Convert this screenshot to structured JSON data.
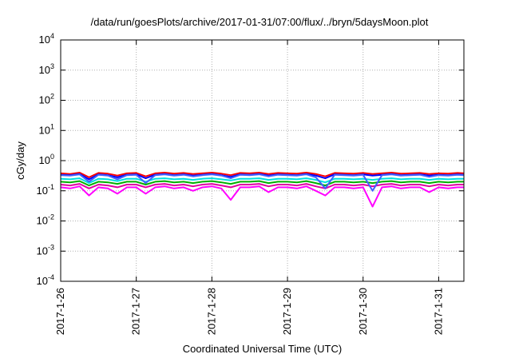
{
  "chart_data": {
    "type": "line",
    "title": "/data/run/goesPlots/archive/2017-01-31/07:00/flux/../bryn/5daysMoon.plot",
    "xlabel": "Coordinated Universal Time (UTC)",
    "ylabel": "cGy/day",
    "y_scale": "log",
    "ylim": [
      0.0001,
      10000
    ],
    "xlim": [
      "2017-01-26",
      "2017-01-31 08:00"
    ],
    "grid": true,
    "y_ticks": [
      {
        "value": 0.0001,
        "exp": "-4"
      },
      {
        "value": 0.001,
        "exp": "-3"
      },
      {
        "value": 0.01,
        "exp": "-2"
      },
      {
        "value": 0.1,
        "exp": "-1"
      },
      {
        "value": 1,
        "exp": "0"
      },
      {
        "value": 10,
        "exp": "1"
      },
      {
        "value": 100,
        "exp": "2"
      },
      {
        "value": 1000,
        "exp": "3"
      },
      {
        "value": 10000,
        "exp": "4"
      }
    ],
    "x_ticks": [
      "2017-1-26",
      "2017-1-27",
      "2017-1-28",
      "2017-1-29",
      "2017-1-30",
      "2017-1-31"
    ],
    "x": [
      "2017-01-26 00:00",
      "2017-01-26 03:00",
      "2017-01-26 06:00",
      "2017-01-26 09:00",
      "2017-01-26 12:00",
      "2017-01-26 15:00",
      "2017-01-26 18:00",
      "2017-01-26 21:00",
      "2017-01-27 00:00",
      "2017-01-27 03:00",
      "2017-01-27 06:00",
      "2017-01-27 09:00",
      "2017-01-27 12:00",
      "2017-01-27 15:00",
      "2017-01-27 18:00",
      "2017-01-27 21:00",
      "2017-01-28 00:00",
      "2017-01-28 03:00",
      "2017-01-28 06:00",
      "2017-01-28 09:00",
      "2017-01-28 12:00",
      "2017-01-28 15:00",
      "2017-01-28 18:00",
      "2017-01-28 21:00",
      "2017-01-29 00:00",
      "2017-01-29 03:00",
      "2017-01-29 06:00",
      "2017-01-29 09:00",
      "2017-01-29 12:00",
      "2017-01-29 15:00",
      "2017-01-29 18:00",
      "2017-01-29 21:00",
      "2017-01-30 00:00",
      "2017-01-30 03:00",
      "2017-01-30 06:00",
      "2017-01-30 09:00",
      "2017-01-30 12:00",
      "2017-01-30 15:00",
      "2017-01-30 18:00",
      "2017-01-30 21:00",
      "2017-01-31 00:00",
      "2017-01-31 03:00",
      "2017-01-31 06:00",
      "2017-01-31 08:00"
    ],
    "series": [
      {
        "color": "#ff0000",
        "values": [
          0.38,
          0.36,
          0.4,
          0.28,
          0.39,
          0.37,
          0.32,
          0.38,
          0.39,
          0.3,
          0.38,
          0.4,
          0.37,
          0.39,
          0.36,
          0.38,
          0.4,
          0.37,
          0.33,
          0.39,
          0.38,
          0.4,
          0.36,
          0.39,
          0.38,
          0.37,
          0.4,
          0.36,
          0.3,
          0.39,
          0.38,
          0.37,
          0.39,
          0.36,
          0.38,
          0.4,
          0.37,
          0.38,
          0.39,
          0.36,
          0.38,
          0.37,
          0.39,
          0.38
        ]
      },
      {
        "color": "#0000ff",
        "values": [
          0.34,
          0.33,
          0.36,
          0.24,
          0.35,
          0.33,
          0.28,
          0.34,
          0.35,
          0.26,
          0.34,
          0.36,
          0.33,
          0.35,
          0.32,
          0.34,
          0.36,
          0.33,
          0.29,
          0.35,
          0.34,
          0.36,
          0.32,
          0.35,
          0.34,
          0.33,
          0.36,
          0.32,
          0.26,
          0.35,
          0.34,
          0.33,
          0.35,
          0.32,
          0.34,
          0.36,
          0.33,
          0.34,
          0.35,
          0.32,
          0.34,
          0.33,
          0.35,
          0.34
        ]
      },
      {
        "color": "#00e0e0",
        "values": [
          0.25,
          0.24,
          0.26,
          0.18,
          0.25,
          0.24,
          0.21,
          0.25,
          0.25,
          0.2,
          0.25,
          0.26,
          0.24,
          0.25,
          0.23,
          0.25,
          0.26,
          0.24,
          0.22,
          0.25,
          0.25,
          0.26,
          0.23,
          0.25,
          0.25,
          0.24,
          0.26,
          0.23,
          0.19,
          0.25,
          0.25,
          0.24,
          0.25,
          0.23,
          0.25,
          0.26,
          0.24,
          0.25,
          0.25,
          0.23,
          0.25,
          0.24,
          0.25,
          0.25
        ]
      },
      {
        "color": "#00b000",
        "values": [
          0.2,
          0.19,
          0.21,
          0.15,
          0.2,
          0.19,
          0.17,
          0.2,
          0.2,
          0.16,
          0.2,
          0.21,
          0.19,
          0.2,
          0.18,
          0.2,
          0.21,
          0.19,
          0.17,
          0.2,
          0.2,
          0.21,
          0.18,
          0.2,
          0.2,
          0.19,
          0.21,
          0.18,
          0.15,
          0.2,
          0.2,
          0.19,
          0.2,
          0.18,
          0.2,
          0.21,
          0.19,
          0.2,
          0.2,
          0.18,
          0.2,
          0.19,
          0.2,
          0.2
        ]
      },
      {
        "color": "#e000a0",
        "values": [
          0.16,
          0.15,
          0.17,
          0.12,
          0.16,
          0.15,
          0.13,
          0.16,
          0.16,
          0.13,
          0.16,
          0.17,
          0.15,
          0.16,
          0.14,
          0.16,
          0.17,
          0.15,
          0.13,
          0.16,
          0.16,
          0.17,
          0.14,
          0.16,
          0.16,
          0.15,
          0.17,
          0.14,
          0.12,
          0.16,
          0.16,
          0.15,
          0.16,
          0.14,
          0.16,
          0.17,
          0.15,
          0.16,
          0.16,
          0.14,
          0.16,
          0.15,
          0.16,
          0.16
        ]
      },
      {
        "color": "#ff00ff",
        "values": [
          0.13,
          0.12,
          0.14,
          0.07,
          0.13,
          0.12,
          0.08,
          0.13,
          0.13,
          0.08,
          0.13,
          0.14,
          0.12,
          0.13,
          0.1,
          0.13,
          0.14,
          0.12,
          0.05,
          0.13,
          0.13,
          0.14,
          0.09,
          0.13,
          0.13,
          0.12,
          0.14,
          0.1,
          0.07,
          0.13,
          0.13,
          0.12,
          0.13,
          0.03,
          0.13,
          0.14,
          0.12,
          0.13,
          0.13,
          0.09,
          0.13,
          0.12,
          0.13,
          0.13
        ]
      },
      {
        "color": "#4060ff",
        "values": [
          0.33,
          0.32,
          0.35,
          0.2,
          0.34,
          0.32,
          0.24,
          0.33,
          0.34,
          0.18,
          0.33,
          0.35,
          0.32,
          0.34,
          0.3,
          0.33,
          0.35,
          0.32,
          0.26,
          0.34,
          0.33,
          0.35,
          0.3,
          0.34,
          0.33,
          0.32,
          0.35,
          0.28,
          0.12,
          0.34,
          0.33,
          0.32,
          0.34,
          0.1,
          0.33,
          0.35,
          0.32,
          0.33,
          0.34,
          0.29,
          0.33,
          0.32,
          0.34,
          0.33
        ]
      }
    ]
  }
}
